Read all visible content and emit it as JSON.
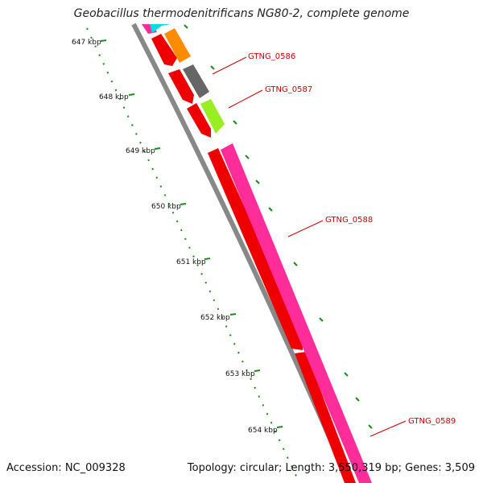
{
  "title": "Geobacillus thermodenitrificans NG80-2, complete genome",
  "accession_label": "Accession: NC_009328",
  "topology_text": "Topology: circular; Length: 3,550,319 bp; Genes: 3,509",
  "colors": {
    "backbone": "#888888",
    "gene_red": "#ee0000",
    "gene_orange": "#ff8c00",
    "gene_grey": "#666666",
    "gene_lime": "#99ee22",
    "gene_pink": "#ff2d9a",
    "gene_cyan": "#00dddd",
    "tick_green": "#1a8c1a",
    "label_red": "#cc0000"
  },
  "ruler": [
    {
      "label": "647 kbp"
    },
    {
      "label": "648 kbp"
    },
    {
      "label": "649 kbp"
    },
    {
      "label": "650 kbp"
    },
    {
      "label": "651 kbp"
    },
    {
      "label": "652 kbp"
    },
    {
      "label": "653 kbp"
    },
    {
      "label": "654 kbp"
    }
  ],
  "gene_labels": [
    {
      "name": "GTNG_0586"
    },
    {
      "name": "GTNG_0587"
    },
    {
      "name": "GTNG_0588"
    },
    {
      "name": "GTNG_0589"
    }
  ]
}
